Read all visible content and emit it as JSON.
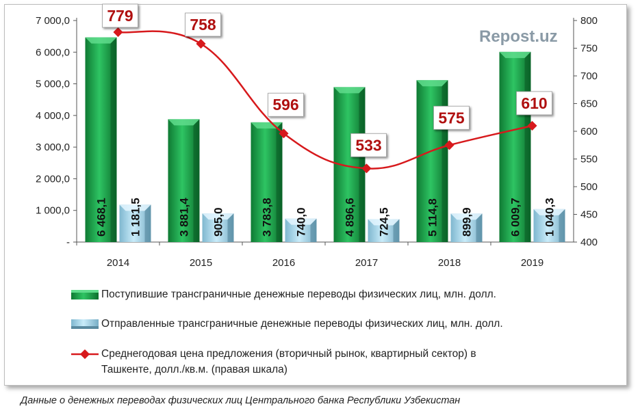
{
  "watermark": "Repost.uz",
  "caption": "Данные о денежных переводах физических лиц Центрального банка Республики Узбекистан",
  "legend": {
    "inflow": "Поступившие трансграничные денежные переводы физических лиц, млн. долл.",
    "outflow": "Отправленные трансграничные денежные переводы физических лиц, млн. долл.",
    "price_line1": "Среднегодовая цена предложения (вторичный рынок, квартирный сектор) в",
    "price_line2": "Ташкенте, долл./кв.м. (правая шкала)"
  },
  "chart_data": {
    "type": "bar",
    "categories": [
      "2014",
      "2015",
      "2016",
      "2017",
      "2018",
      "2019"
    ],
    "series": [
      {
        "name": "Поступившие трансграничные денежные переводы физических лиц, млн. долл.",
        "values": [
          6468.1,
          3881.4,
          3783.8,
          4896.6,
          5114.8,
          6009.7
        ],
        "labels": [
          "6 468,1",
          "3 881,4",
          "3 783,8",
          "4 896,6",
          "5 114,8",
          "6 009,7"
        ],
        "color": "#1fa64a",
        "axis": "left"
      },
      {
        "name": "Отправленные трансграничные денежные переводы физических лиц, млн. долл.",
        "values": [
          1181.5,
          905.0,
          740.0,
          724.5,
          899.9,
          1040.3
        ],
        "labels": [
          "1 181,5",
          "905,0",
          "740,0",
          "724,5",
          "899,9",
          "1 040,3"
        ],
        "color": "#9fd3ea",
        "axis": "left"
      },
      {
        "name": "Среднегодовая цена предложения (вторичный рынок, квартирный сектор) в Ташкенте, долл./кв.м. (правая шкала)",
        "type": "line",
        "values": [
          779,
          758,
          596,
          533,
          575,
          610
        ],
        "labels": [
          "779",
          "758",
          "596",
          "533",
          "575",
          "610"
        ],
        "color": "#d7191c",
        "label_color": "#b01010",
        "axis": "right"
      }
    ],
    "y_left": {
      "ylim": [
        0,
        7000
      ],
      "ticks": [
        0,
        1000,
        2000,
        3000,
        4000,
        5000,
        6000,
        7000
      ],
      "tick_labels": [
        "-",
        "1 000,0",
        "2 000,0",
        "3 000,0",
        "4 000,0",
        "5 000,0",
        "6 000,0",
        "7 000,0"
      ]
    },
    "y_right": {
      "ylim": [
        400,
        800
      ],
      "ticks": [
        400,
        450,
        500,
        550,
        600,
        650,
        700,
        750,
        800
      ],
      "tick_labels": [
        "400",
        "450",
        "500",
        "550",
        "600",
        "650",
        "700",
        "750",
        "800"
      ]
    },
    "grid": false,
    "legend_position": "bottom",
    "xlabel": "",
    "ylabel": ""
  }
}
